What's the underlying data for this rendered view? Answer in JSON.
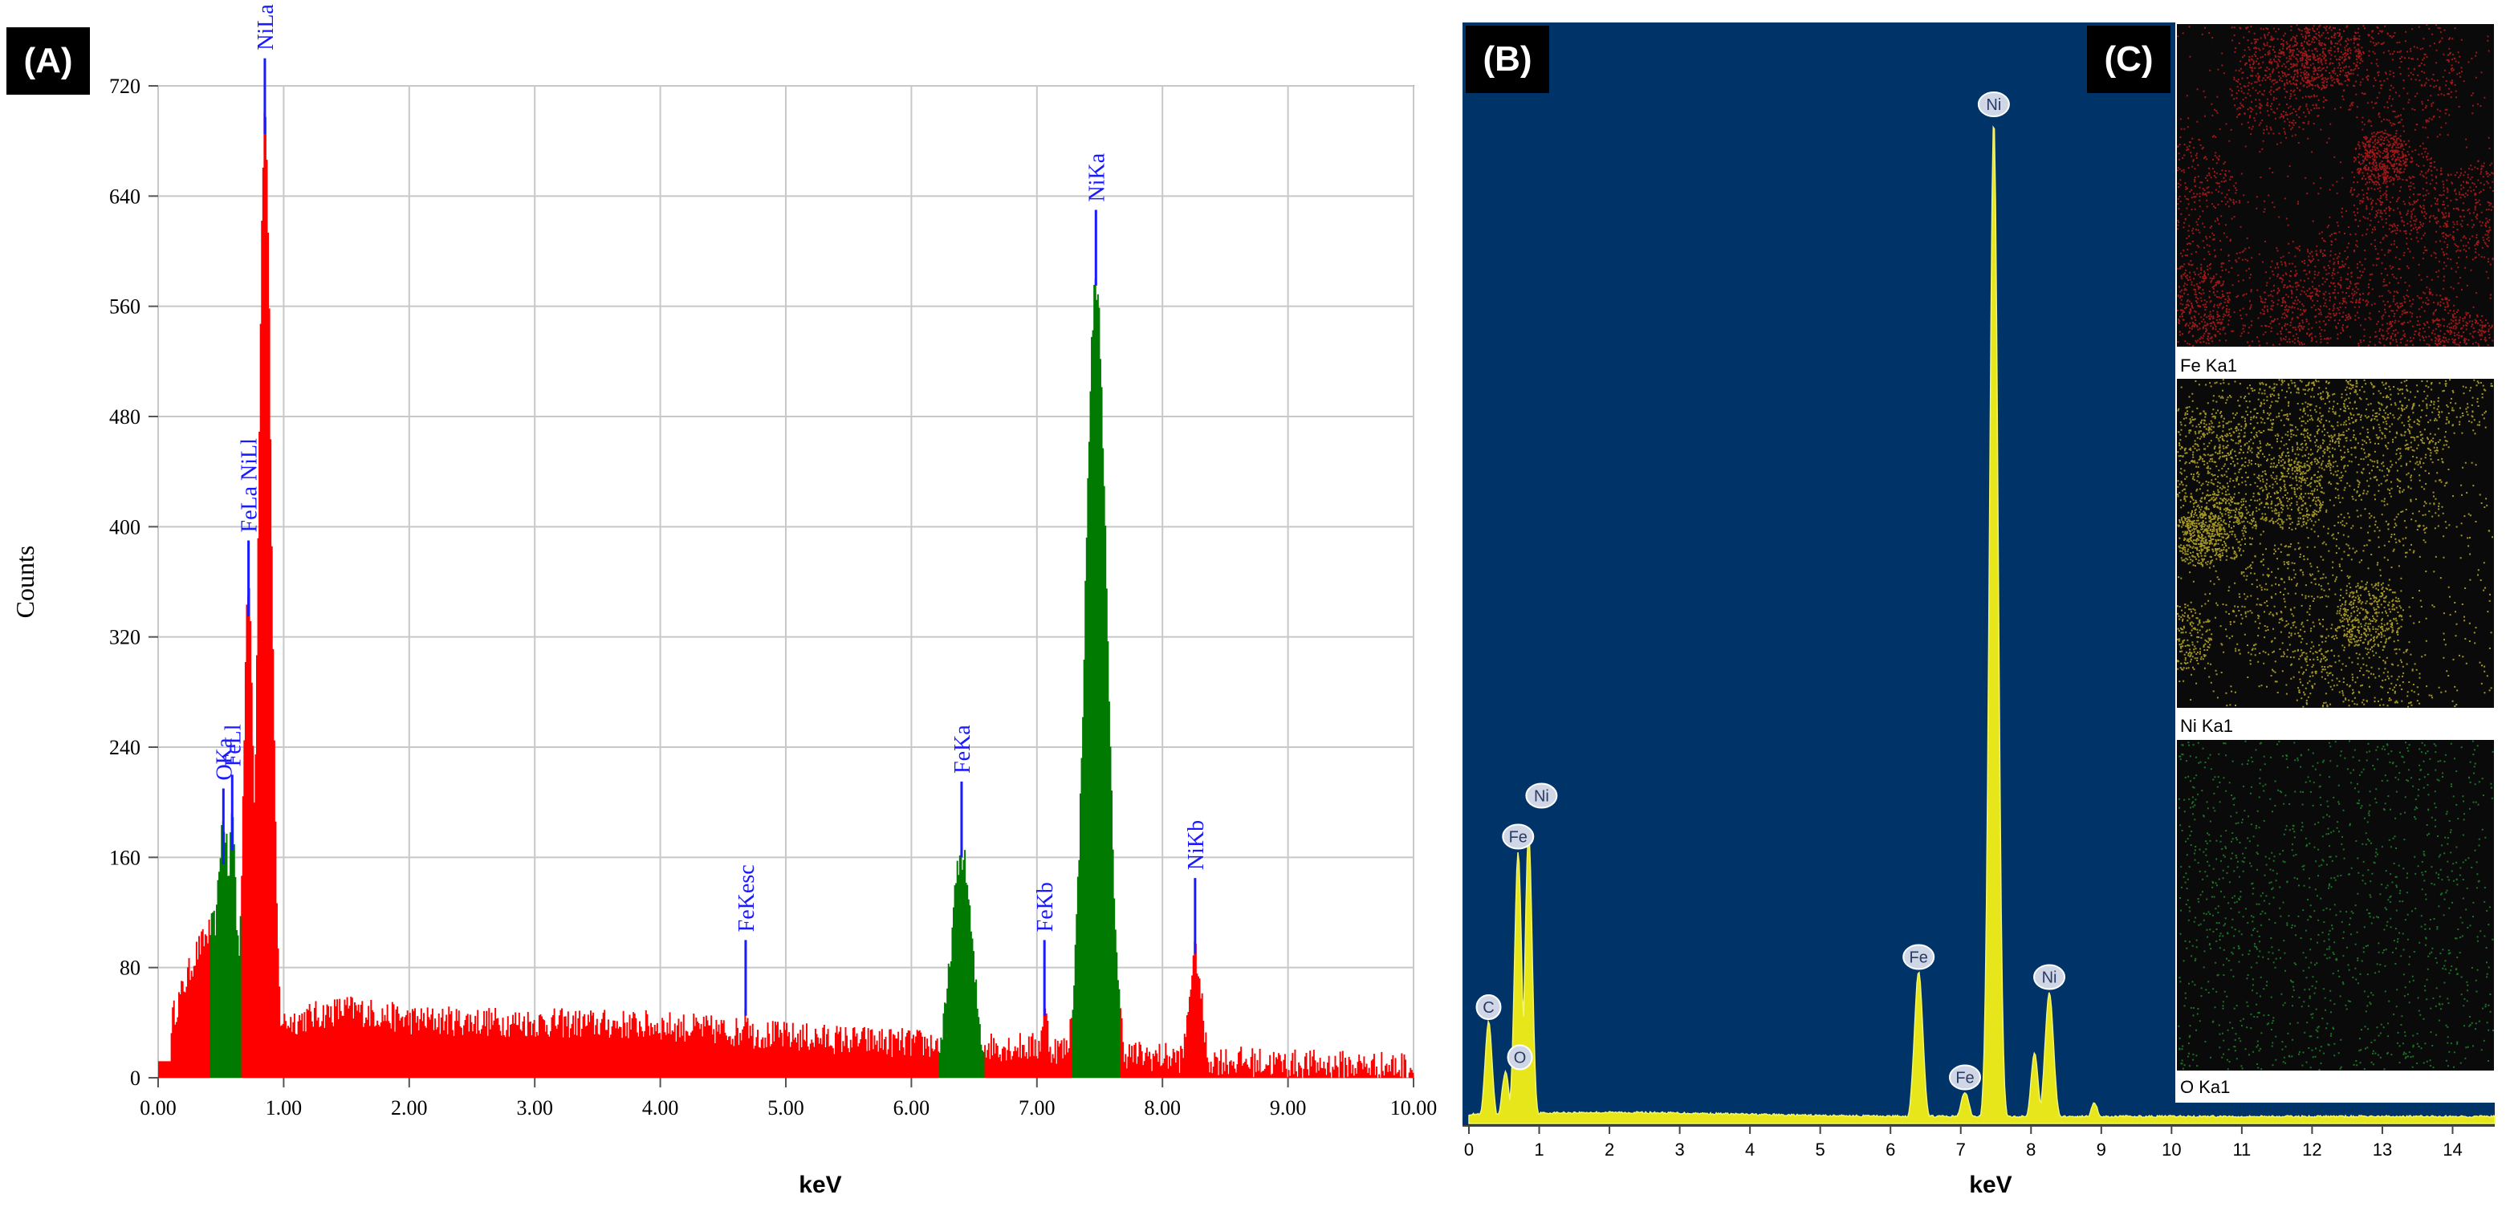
{
  "panels": {
    "a": {
      "badge": "(A)",
      "xlabel": "keV",
      "ylabel": "Counts",
      "xticks": [
        "0.00",
        "1.00",
        "2.00",
        "3.00",
        "4.00",
        "5.00",
        "6.00",
        "7.00",
        "8.00",
        "9.00",
        "10.00"
      ],
      "yticks": [
        "0",
        "80",
        "160",
        "240",
        "320",
        "400",
        "480",
        "560",
        "640",
        "720"
      ]
    },
    "b": {
      "badge": "(B)",
      "xlabel": "keV",
      "xticks": [
        "0",
        "1",
        "2",
        "3",
        "4",
        "5",
        "6",
        "7",
        "8",
        "9",
        "10",
        "11",
        "12",
        "13",
        "14"
      ]
    },
    "c": {
      "badge": "(C)",
      "maps": [
        {
          "label": "Fe Ka1",
          "color": "#c41a1a"
        },
        {
          "label": "Ni Ka1",
          "color": "#c8b82a"
        },
        {
          "label": "O Ka1",
          "color": "#22a030"
        }
      ]
    }
  },
  "chart_data": [
    {
      "type": "area",
      "panel": "A",
      "xlabel": "keV",
      "ylabel": "Counts",
      "xlim": [
        0,
        10
      ],
      "ylim": [
        0,
        720
      ],
      "grid": true,
      "colors": {
        "background_spectrum": "#ff0000",
        "identified_peaks": "#007a00",
        "marker": "#1a1aff"
      },
      "peaks": [
        {
          "label": "OKa",
          "energy": 0.52,
          "counts": 150,
          "fill": "green"
        },
        {
          "label": "FeLl",
          "energy": 0.59,
          "counts": 160,
          "fill": "green"
        },
        {
          "label": "FeLa NiLl",
          "energy": 0.72,
          "counts": 330,
          "fill": "red"
        },
        {
          "label": "NiLa",
          "energy": 0.85,
          "counts": 680,
          "fill": "red"
        },
        {
          "label": "FeKesc",
          "energy": 4.68,
          "counts": 40,
          "fill": "red"
        },
        {
          "label": "FeKa",
          "energy": 6.4,
          "counts": 155,
          "fill": "green"
        },
        {
          "label": "FeKb",
          "energy": 7.06,
          "counts": 40,
          "fill": "red"
        },
        {
          "label": "NiKa",
          "energy": 7.47,
          "counts": 570,
          "fill": "green"
        },
        {
          "label": "NiKb",
          "energy": 8.26,
          "counts": 85,
          "fill": "red"
        }
      ],
      "continuum": {
        "x": [
          0.1,
          0.3,
          0.5,
          1.0,
          1.5,
          2.0,
          3.0,
          4.0,
          5.0,
          6.0,
          7.0,
          8.0,
          9.0,
          10.0
        ],
        "y": [
          40,
          90,
          120,
          40,
          50,
          42,
          40,
          38,
          30,
          25,
          22,
          15,
          10,
          8
        ]
      }
    },
    {
      "type": "area",
      "panel": "B",
      "xlabel": "keV",
      "xlim": [
        0,
        14.6
      ],
      "grid": false,
      "colors": {
        "background": "#003469",
        "fill": "#e6e61a"
      },
      "peaks": [
        {
          "label": "C",
          "energy": 0.28,
          "relative_height": 0.1
        },
        {
          "label": "O",
          "energy": 0.52,
          "relative_height": 0.05
        },
        {
          "label": "Fe",
          "energy": 0.7,
          "relative_height": 0.27
        },
        {
          "label": "Ni",
          "energy": 0.85,
          "relative_height": 0.29
        },
        {
          "label": "Fe",
          "energy": 6.4,
          "relative_height": 0.15
        },
        {
          "label": "Fe",
          "energy": 7.06,
          "relative_height": 0.03
        },
        {
          "label": "Ni",
          "energy": 7.47,
          "relative_height": 1.0
        },
        {
          "label": "Ni",
          "energy": 8.26,
          "relative_height": 0.13
        }
      ]
    }
  ]
}
